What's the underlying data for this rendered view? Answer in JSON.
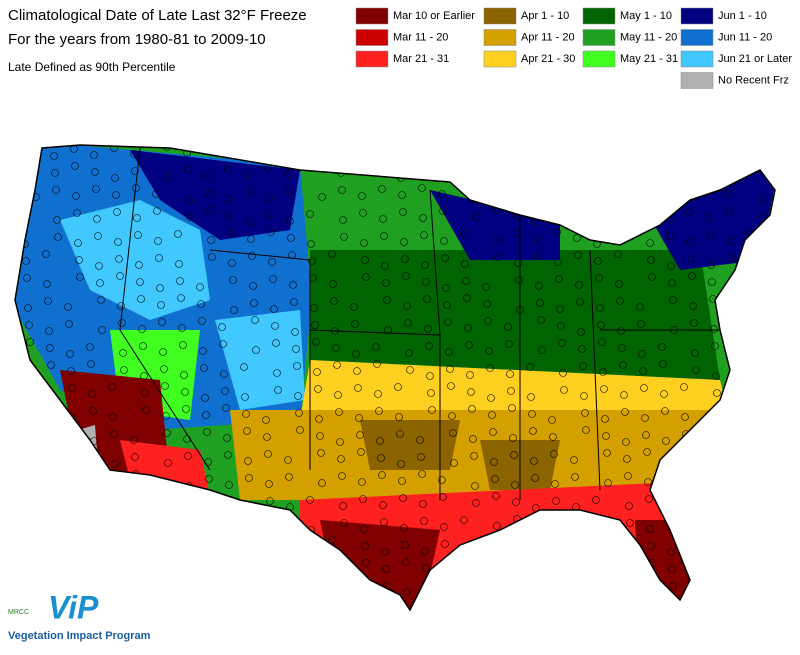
{
  "header": {
    "title_lines": [
      "Climatological Date of Late Last 32°F Freeze",
      "For the years from 1980-81 to 2009-10"
    ],
    "subtitle": "Late Defined as 90th Percentile"
  },
  "legend": [
    {
      "label": "Mar 10 or Earlier",
      "color": "#800000"
    },
    {
      "label": "Mar 11 - 20",
      "color": "#cc0000"
    },
    {
      "label": "Mar 21 - 31",
      "color": "#ff2020"
    },
    {
      "label": "Apr 1 - 10",
      "color": "#8b6400"
    },
    {
      "label": "Apr 11 - 20",
      "color": "#d4a000"
    },
    {
      "label": "Apr 21 - 30",
      "color": "#ffd020"
    },
    {
      "label": "May 1 - 10",
      "color": "#006400"
    },
    {
      "label": "May 11 - 20",
      "color": "#20a020"
    },
    {
      "label": "May 21 - 31",
      "color": "#40ff20"
    },
    {
      "label": "Jun 1 - 10",
      "color": "#000080"
    },
    {
      "label": "Jun 11 - 20",
      "color": "#1070d0"
    },
    {
      "label": "Jun 21 or Later",
      "color": "#40c8ff"
    },
    {
      "label": "No Recent Frz",
      "color": "#b0b0b0"
    }
  ],
  "logo": {
    "org": "MRCC",
    "mark": "ViP",
    "name": "Vegetation Impact Program"
  }
}
